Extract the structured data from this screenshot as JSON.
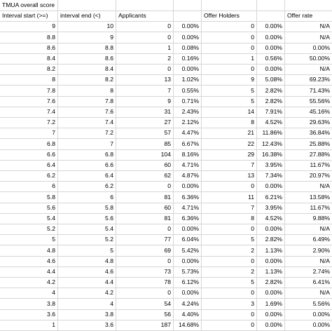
{
  "title": "TMUA overall score",
  "headers": [
    "Interval start (>=)",
    "interval end (<)",
    "Applicants",
    "",
    "Offer Holders",
    "",
    "Offer rate"
  ],
  "rows": [
    [
      "9",
      "10",
      "0",
      "0.00%",
      "0",
      "0.00%",
      "N/A"
    ],
    [
      "8.8",
      "9",
      "0",
      "0.00%",
      "0",
      "0.00%",
      "N/A"
    ],
    [
      "8.6",
      "8.8",
      "1",
      "0.08%",
      "0",
      "0.00%",
      "0.00%"
    ],
    [
      "8.4",
      "8.6",
      "2",
      "0.16%",
      "1",
      "0.56%",
      "50.00%"
    ],
    [
      "8.2",
      "8.4",
      "0",
      "0.00%",
      "0",
      "0.00%",
      "N/A"
    ],
    [
      "8",
      "8.2",
      "13",
      "1.02%",
      "9",
      "5.08%",
      "69.23%"
    ],
    [
      "7.8",
      "8",
      "7",
      "0.55%",
      "5",
      "2.82%",
      "71.43%"
    ],
    [
      "7.6",
      "7.8",
      "9",
      "0.71%",
      "5",
      "2.82%",
      "55.56%"
    ],
    [
      "7.4",
      "7.6",
      "31",
      "2.43%",
      "14",
      "7.91%",
      "45.16%"
    ],
    [
      "7.2",
      "7.4",
      "27",
      "2.12%",
      "8",
      "4.52%",
      "29.63%"
    ],
    [
      "7",
      "7.2",
      "57",
      "4.47%",
      "21",
      "11.86%",
      "36.84%"
    ],
    [
      "6.8",
      "7",
      "85",
      "6.67%",
      "22",
      "12.43%",
      "25.88%"
    ],
    [
      "6.6",
      "6.8",
      "104",
      "8.16%",
      "29",
      "16.38%",
      "27.88%"
    ],
    [
      "6.4",
      "6.6",
      "60",
      "4.71%",
      "7",
      "3.95%",
      "11.67%"
    ],
    [
      "6.2",
      "6.4",
      "62",
      "4.87%",
      "13",
      "7.34%",
      "20.97%"
    ],
    [
      "6",
      "6.2",
      "0",
      "0.00%",
      "0",
      "0.00%",
      "N/A"
    ],
    [
      "5.8",
      "6",
      "81",
      "6.36%",
      "11",
      "6.21%",
      "13.58%"
    ],
    [
      "5.6",
      "5.8",
      "60",
      "4.71%",
      "7",
      "3.95%",
      "11.67%"
    ],
    [
      "5.4",
      "5.6",
      "81",
      "6.36%",
      "8",
      "4.52%",
      "9.88%"
    ],
    [
      "5.2",
      "5.4",
      "0",
      "0.00%",
      "0",
      "0.00%",
      "N/A"
    ],
    [
      "5",
      "5.2",
      "77",
      "6.04%",
      "5",
      "2.82%",
      "6.49%"
    ],
    [
      "4.8",
      "5",
      "69",
      "5.42%",
      "2",
      "1.13%",
      "2.90%"
    ],
    [
      "4.6",
      "4.8",
      "0",
      "0.00%",
      "0",
      "0.00%",
      "N/A"
    ],
    [
      "4.4",
      "4.6",
      "73",
      "5.73%",
      "2",
      "1.13%",
      "2.74%"
    ],
    [
      "4.2",
      "4.4",
      "78",
      "6.12%",
      "5",
      "2.82%",
      "6.41%"
    ],
    [
      "4",
      "4.2",
      "0",
      "0.00%",
      "0",
      "0.00%",
      "N/A"
    ],
    [
      "3.8",
      "4",
      "54",
      "4.24%",
      "3",
      "1.69%",
      "5.56%"
    ],
    [
      "3.6",
      "3.8",
      "56",
      "4.40%",
      "0",
      "0.00%",
      "0.00%"
    ],
    [
      "1",
      "3.6",
      "187",
      "14.68%",
      "0",
      "0.00%",
      "0.00%"
    ]
  ]
}
